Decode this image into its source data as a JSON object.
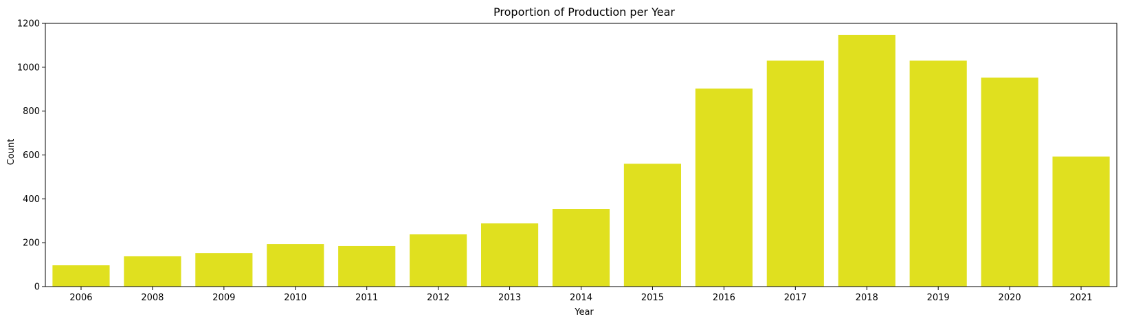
{
  "chart_data": {
    "type": "bar",
    "title": "Proportion of Production per Year",
    "xlabel": "Year",
    "ylabel": "Count",
    "categories": [
      "2006",
      "2008",
      "2009",
      "2010",
      "2011",
      "2012",
      "2013",
      "2014",
      "2015",
      "2016",
      "2017",
      "2018",
      "2019",
      "2020",
      "2021"
    ],
    "values": [
      97,
      138,
      153,
      194,
      185,
      238,
      288,
      354,
      560,
      903,
      1030,
      1147,
      1030,
      953,
      593
    ],
    "ylim": [
      0,
      1200
    ],
    "yticks": [
      0,
      200,
      400,
      600,
      800,
      1000,
      1200
    ],
    "bar_color": "#e0e01f",
    "grid": false,
    "legend": false
  }
}
